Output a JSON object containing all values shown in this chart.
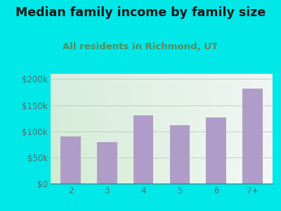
{
  "title": "Median family income by family size",
  "subtitle": "All residents in Richmond, UT",
  "categories": [
    "2",
    "3",
    "4",
    "5",
    "6",
    "7+"
  ],
  "values": [
    90000,
    80000,
    130000,
    112000,
    127000,
    182000
  ],
  "bar_color": "#b09cc8",
  "background_outer": "#00e8e8",
  "grad_top_left": "#d8ede0",
  "grad_top_right": "#e8f0f0",
  "grad_bottom_left": "#d0ecd0",
  "grad_bottom_right": "#f5f5f0",
  "title_color": "#1a1a1a",
  "subtitle_color": "#5a8a5a",
  "tick_color": "#5a6a6a",
  "ylim": [
    0,
    210000
  ],
  "yticks": [
    0,
    50000,
    100000,
    150000,
    200000
  ],
  "ytick_labels": [
    "$0",
    "$50k",
    "$100k",
    "$150k",
    "$200k"
  ],
  "title_fontsize": 12.5,
  "subtitle_fontsize": 9.5,
  "tick_fontsize": 8.5,
  "grid_color": "#c0d0c0",
  "grid_linewidth": 0.7
}
